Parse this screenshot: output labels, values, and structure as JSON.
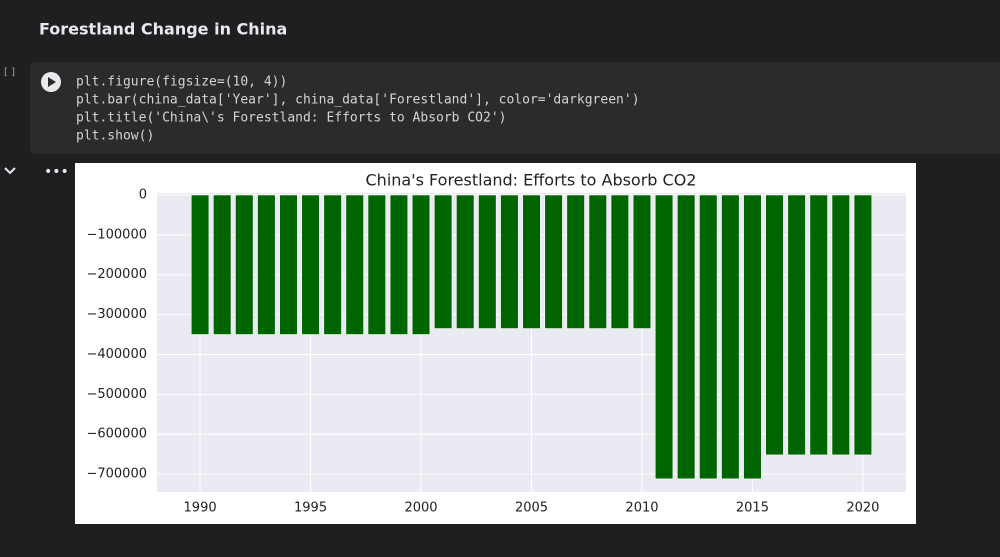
{
  "header": {
    "title": "Forestland Change in China"
  },
  "cell": {
    "prompt": "[ ]",
    "code": [
      "plt.figure(figsize=(10, 4))",
      "plt.bar(china_data['Year'], china_data['Forestland'], color='darkgreen')",
      "plt.title('China\\'s Forestland: Efforts to Absorb CO2')",
      "plt.show()"
    ]
  },
  "chart_data": {
    "type": "bar",
    "title": "China's Forestland: Efforts to Absorb CO2",
    "x": [
      1990,
      1991,
      1992,
      1993,
      1994,
      1995,
      1996,
      1997,
      1998,
      1999,
      2000,
      2001,
      2002,
      2003,
      2004,
      2005,
      2006,
      2007,
      2008,
      2009,
      2010,
      2011,
      2012,
      2013,
      2014,
      2015,
      2016,
      2017,
      2018,
      2019,
      2020
    ],
    "values": [
      -350000,
      -350000,
      -350000,
      -350000,
      -350000,
      -350000,
      -350000,
      -350000,
      -350000,
      -350000,
      -350000,
      -335000,
      -335000,
      -335000,
      -335000,
      -335000,
      -335000,
      -335000,
      -335000,
      -335000,
      -335000,
      -712000,
      -712000,
      -712000,
      -712000,
      -712000,
      -652000,
      -652000,
      -652000,
      -652000,
      -652000
    ],
    "color": "#006400",
    "xlim": [
      1988.05,
      2021.95
    ],
    "ylim": [
      -745000,
      5000
    ],
    "xticks": [
      1990,
      1995,
      2000,
      2005,
      2010,
      2015,
      2020
    ],
    "yticks": [
      0,
      {
        "value": -100000,
        "label": "−100000"
      },
      {
        "value": -200000,
        "label": "−200000"
      },
      {
        "value": -300000,
        "label": "−300000"
      },
      {
        "value": -400000,
        "label": "−400000"
      },
      {
        "value": -500000,
        "label": "−500000"
      },
      {
        "value": -600000,
        "label": "−600000"
      },
      {
        "value": -700000,
        "label": "−700000"
      }
    ],
    "grid": true
  }
}
